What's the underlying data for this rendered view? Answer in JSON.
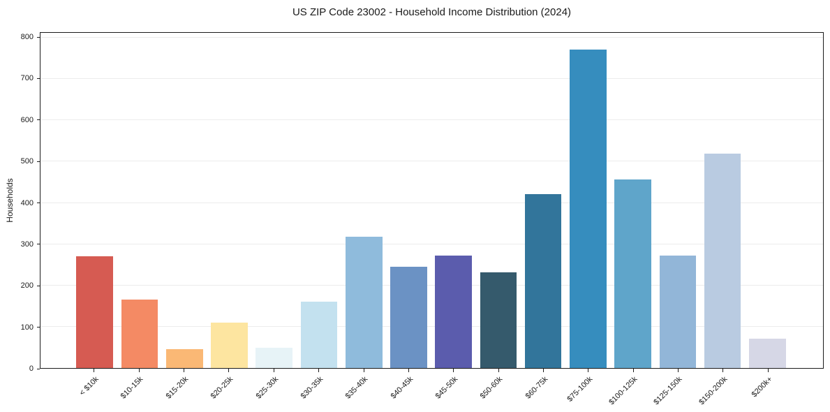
{
  "page": {
    "background": "#ffffff"
  },
  "chart_data": {
    "type": "bar",
    "title": "US ZIP Code 23002 - Household Income Distribution (2024)",
    "xlabel": "",
    "ylabel": "Households",
    "categories": [
      "< $10k",
      "$10-15k",
      "$15-20k",
      "$20-25k",
      "$25-30k",
      "$30-35k",
      "$35-40k",
      "$40-45k",
      "$45-50k",
      "$50-60k",
      "$60-75k",
      "$75-100k",
      "$100-125k",
      "$125-150k",
      "$150-200k",
      "$200k+"
    ],
    "values": [
      270,
      165,
      46,
      110,
      49,
      160,
      318,
      245,
      272,
      232,
      421,
      771,
      457,
      272,
      520,
      71
    ],
    "bar_colors": [
      "#d65b52",
      "#f48a64",
      "#fab875",
      "#fde5a0",
      "#e7f3f7",
      "#c3e1ef",
      "#8fbbdc",
      "#6b92c4",
      "#5b5cad",
      "#355a6c",
      "#32759b",
      "#368dbe",
      "#5fa5ca",
      "#92b6d8",
      "#b9cbe1",
      "#d6d7e6"
    ],
    "ylim": [
      0,
      800
    ],
    "yticks": [
      0,
      100,
      200,
      300,
      400,
      500,
      600,
      700,
      800
    ],
    "grid": true,
    "legend": false,
    "gridline_color": "#ececec",
    "axis_color": "#1a1a1a",
    "text_color": "#1a1a1a"
  }
}
